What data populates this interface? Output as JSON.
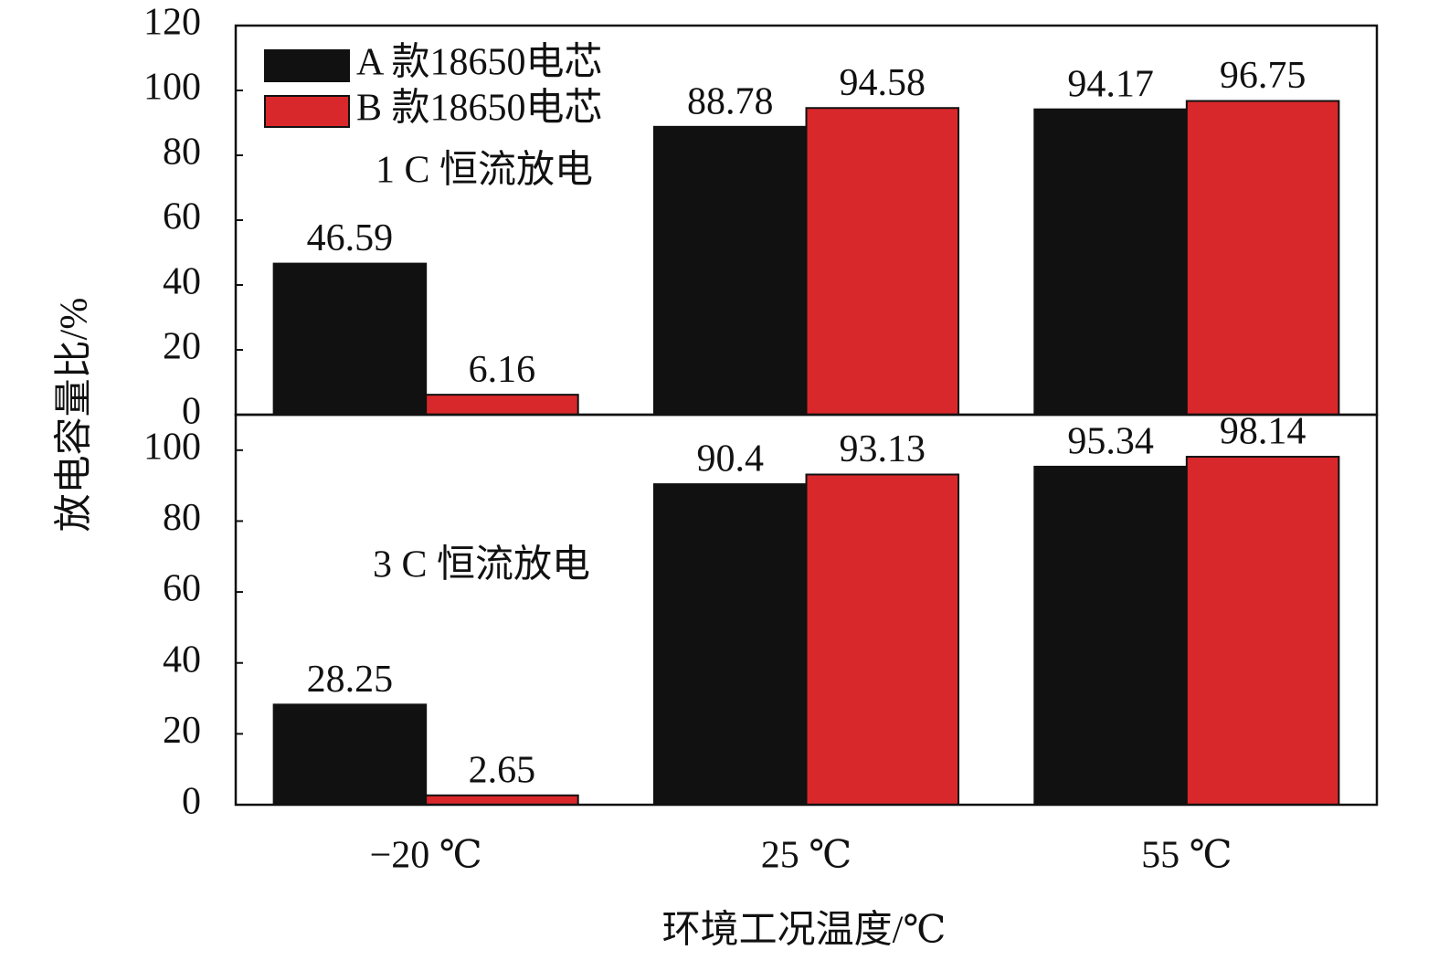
{
  "chart_data": [
    {
      "type": "bar",
      "annotation": "1 C 恒流放电",
      "ylabel": "放电容量比/%",
      "series": [
        {
          "name": "A 款18650电芯",
          "color": "#111111",
          "values": [
            46.59,
            88.78,
            94.17
          ]
        },
        {
          "name": "B 款18650电芯",
          "color": "#d9282b",
          "values": [
            6.16,
            94.58,
            96.75
          ]
        }
      ],
      "ylim": [
        0,
        120
      ],
      "yticks": [
        0,
        20,
        40,
        60,
        80,
        100,
        120
      ],
      "legend": "upper left"
    },
    {
      "type": "bar",
      "annotation": "3 C 恒流放电",
      "xlabel": "环境工况温度/℃",
      "categories": [
        "−20 ℃",
        "25 ℃",
        "55 ℃"
      ],
      "series": [
        {
          "color": "#111111",
          "values": [
            28.25,
            90.4,
            95.34
          ]
        },
        {
          "color": "#d9282b",
          "values": [
            2.65,
            93.13,
            98.14
          ]
        }
      ],
      "ylim": [
        0,
        110
      ],
      "yticks": [
        0,
        20,
        40,
        60,
        80,
        100
      ]
    }
  ]
}
